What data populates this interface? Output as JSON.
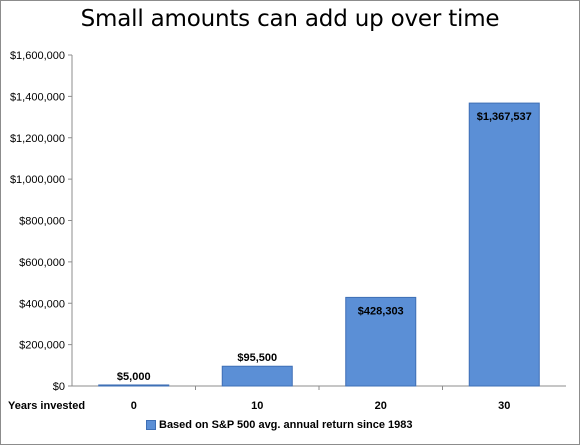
{
  "chart_data": {
    "type": "bar",
    "title": "Small amounts can add up over time",
    "xlabel": "Years invested",
    "ylabel": "",
    "categories": [
      "0",
      "10",
      "20",
      "30"
    ],
    "series": [
      {
        "name": "Based on S&P 500 avg. annual return since 1983",
        "values": [
          5000,
          95500,
          428303,
          1367537
        ],
        "labels": [
          "$5,000",
          "$95,500",
          "$428,303",
          "$1,367,537"
        ]
      }
    ],
    "ylim": [
      0,
      1600000
    ],
    "yticks": [
      "$0",
      "$200,000",
      "$400,000",
      "$600,000",
      "$800,000",
      "$1,000,000",
      "$1,200,000",
      "$1,400,000",
      "$1,600,000"
    ],
    "grid": false,
    "legend": "bottom",
    "colors": {
      "bar": "#5b8fd6",
      "bar_edge": "#3e6fb5",
      "axis": "#8c8c8c"
    }
  }
}
